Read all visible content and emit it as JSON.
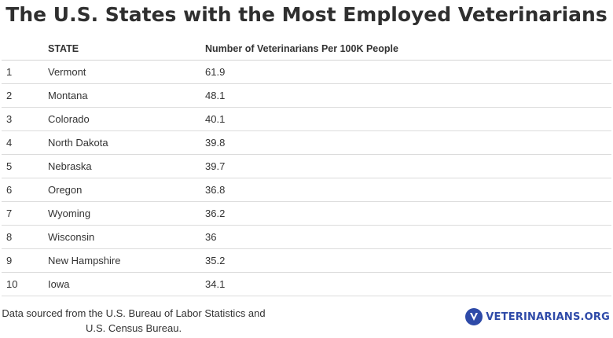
{
  "chart_data": {
    "type": "table",
    "title": "The U.S. States with the Most Employed Veterinarians",
    "columns": [
      "",
      "STATE",
      "Number of Veterinarians Per 100K People"
    ],
    "rows": [
      {
        "rank": "1",
        "state": "Vermont",
        "value": "61.9"
      },
      {
        "rank": "2",
        "state": "Montana",
        "value": "48.1"
      },
      {
        "rank": "3",
        "state": "Colorado",
        "value": "40.1"
      },
      {
        "rank": "4",
        "state": "North Dakota",
        "value": "39.8"
      },
      {
        "rank": "5",
        "state": "Nebraska",
        "value": "39.7"
      },
      {
        "rank": "6",
        "state": "Oregon",
        "value": "36.8"
      },
      {
        "rank": "7",
        "state": "Wyoming",
        "value": "36.2"
      },
      {
        "rank": "8",
        "state": "Wisconsin",
        "value": "36"
      },
      {
        "rank": "9",
        "state": "New Hampshire",
        "value": "35.2"
      },
      {
        "rank": "10",
        "state": "Iowa",
        "value": "34.1"
      }
    ]
  },
  "footer": {
    "source_line1": "Data sourced from the U.S. Bureau of Labor Statistics and",
    "source_line2": "U.S. Census Bureau.",
    "brand": "VETERINARIANS.ORG"
  },
  "colors": {
    "brand": "#2e4aa8",
    "text": "#333333",
    "divider": "#dcdcdc"
  }
}
